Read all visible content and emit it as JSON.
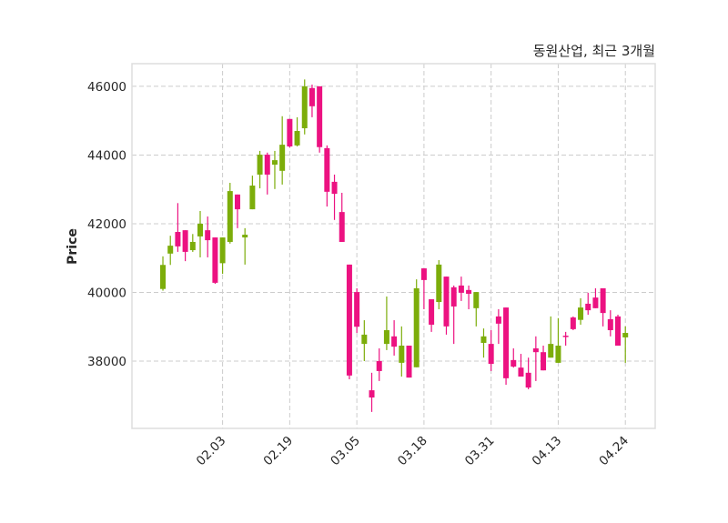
{
  "chart_data": {
    "type": "candlestick",
    "title": "동원산업, 최근 3개월",
    "xlabel": "",
    "ylabel": "Price",
    "ylim": [
      36040,
      46660
    ],
    "yticks": [
      38000,
      40000,
      42000,
      44000,
      46000
    ],
    "ytick_labels": [
      "38000",
      "40000",
      "42000",
      "44000",
      "46000"
    ],
    "xticks": [
      {
        "index": 8,
        "label": "02.03"
      },
      {
        "index": 17,
        "label": "02.19"
      },
      {
        "index": 26,
        "label": "03.05"
      },
      {
        "index": 35,
        "label": "03.18"
      },
      {
        "index": 44,
        "label": "03.31"
      },
      {
        "index": 53,
        "label": "04.13"
      },
      {
        "index": 62,
        "label": "04.24"
      }
    ],
    "grid": true,
    "colors": {
      "up": "#7cad0a",
      "down": "#ec1281",
      "grid": "#cccccc",
      "frame": "#dddddd"
    },
    "ohlc": [
      [
        40100,
        41050,
        40050,
        40800
      ],
      [
        41130,
        41650,
        40800,
        41360
      ],
      [
        41760,
        42600,
        41180,
        41340
      ],
      [
        41810,
        41810,
        40910,
        41180
      ],
      [
        41230,
        41700,
        41180,
        41470
      ],
      [
        41630,
        42370,
        41020,
        42000
      ],
      [
        41810,
        42210,
        41020,
        41520
      ],
      [
        41600,
        41600,
        40250,
        40280
      ],
      [
        40850,
        41600,
        40540,
        41600
      ],
      [
        41470,
        43190,
        41420,
        42950
      ],
      [
        42850,
        42850,
        41870,
        42420
      ],
      [
        41600,
        41870,
        40810,
        41680
      ],
      [
        42420,
        43400,
        42420,
        43110
      ],
      [
        43430,
        44120,
        43030,
        44010
      ],
      [
        44010,
        44070,
        42850,
        43430
      ],
      [
        43720,
        44120,
        43010,
        43850
      ],
      [
        43540,
        45130,
        43140,
        44300
      ],
      [
        45050,
        45050,
        44220,
        44250
      ],
      [
        44280,
        45100,
        44250,
        44700
      ],
      [
        44780,
        46200,
        44600,
        46000
      ],
      [
        45950,
        46050,
        45100,
        45420
      ],
      [
        46000,
        46000,
        44070,
        44230
      ],
      [
        44200,
        44280,
        42500,
        42930
      ],
      [
        43220,
        43430,
        42110,
        42870
      ],
      [
        42340,
        42900,
        41470,
        41470
      ],
      [
        40810,
        40810,
        37470,
        37580
      ],
      [
        40010,
        40120,
        38820,
        39000
      ],
      [
        38500,
        39190,
        38000,
        38770
      ],
      [
        37150,
        37660,
        36520,
        36940
      ],
      [
        38000,
        38370,
        37420,
        37710
      ],
      [
        38500,
        39880,
        38320,
        38900
      ],
      [
        38720,
        39190,
        38160,
        38420
      ],
      [
        37950,
        39010,
        37550,
        38450
      ],
      [
        38450,
        38450,
        37520,
        37520
      ],
      [
        37820,
        40380,
        37820,
        40120
      ],
      [
        40700,
        40700,
        39510,
        40360
      ],
      [
        39800,
        39800,
        38850,
        39060
      ],
      [
        39720,
        40940,
        39510,
        40810
      ],
      [
        40460,
        40460,
        38770,
        39010
      ],
      [
        40150,
        40200,
        38500,
        39590
      ],
      [
        40200,
        40460,
        39750,
        39990
      ],
      [
        40070,
        40200,
        39510,
        39960
      ],
      [
        39540,
        40010,
        39010,
        40010
      ],
      [
        38530,
        38950,
        38100,
        38720
      ],
      [
        38500,
        38900,
        37710,
        37920
      ],
      [
        39300,
        39510,
        38500,
        39090
      ],
      [
        39560,
        39560,
        37310,
        37500
      ],
      [
        38030,
        38370,
        37810,
        37840
      ],
      [
        37810,
        38210,
        37550,
        37550
      ],
      [
        37660,
        38100,
        37180,
        37230
      ],
      [
        38370,
        38720,
        37420,
        38260
      ],
      [
        38260,
        38450,
        37730,
        37730
      ],
      [
        38100,
        39300,
        38100,
        38500
      ],
      [
        37950,
        39250,
        37950,
        38450
      ],
      [
        38740,
        38850,
        38450,
        38700
      ],
      [
        39270,
        39300,
        38900,
        38930
      ],
      [
        39200,
        39830,
        39060,
        39560
      ],
      [
        39670,
        39990,
        39350,
        39480
      ],
      [
        39850,
        40120,
        39540,
        39540
      ],
      [
        40120,
        40120,
        39010,
        39400
      ],
      [
        39220,
        39480,
        38720,
        38900
      ],
      [
        39300,
        39350,
        38450,
        38450
      ],
      [
        38690,
        39010,
        37950,
        38820
      ]
    ]
  }
}
